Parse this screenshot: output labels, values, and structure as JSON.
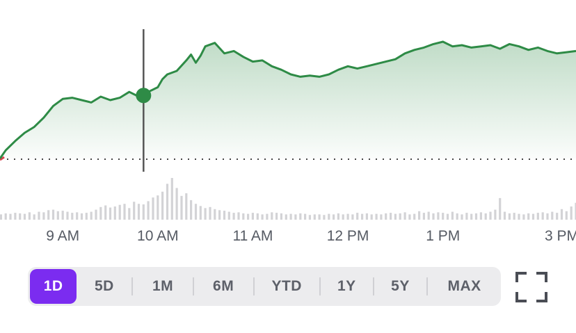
{
  "chart_data": {
    "type": "area",
    "accent_color": "#2e8b46",
    "x_tick_labels": [
      "9 AM",
      "10 AM",
      "11 AM",
      "12 PM",
      "1 PM",
      "3 PM"
    ],
    "x_tick_times": [
      9.0,
      10.0,
      11.0,
      12.0,
      13.0,
      14.25
    ],
    "x_range": [
      8.34,
      14.4
    ],
    "baseline_value": 0,
    "y_range": [
      0,
      100
    ],
    "cursor_time": 9.85,
    "cursor_value": 54,
    "price_series": [
      [
        8.34,
        0
      ],
      [
        8.4,
        7
      ],
      [
        8.5,
        15
      ],
      [
        8.6,
        22
      ],
      [
        8.7,
        27
      ],
      [
        8.8,
        35
      ],
      [
        8.9,
        45
      ],
      [
        9.0,
        51
      ],
      [
        9.1,
        52
      ],
      [
        9.2,
        50
      ],
      [
        9.3,
        48
      ],
      [
        9.4,
        53
      ],
      [
        9.5,
        50
      ],
      [
        9.6,
        52
      ],
      [
        9.7,
        57
      ],
      [
        9.8,
        53
      ],
      [
        9.85,
        54
      ],
      [
        9.9,
        57
      ],
      [
        10.0,
        61
      ],
      [
        10.05,
        68
      ],
      [
        10.1,
        72
      ],
      [
        10.2,
        75
      ],
      [
        10.3,
        84
      ],
      [
        10.35,
        89
      ],
      [
        10.4,
        82
      ],
      [
        10.45,
        88
      ],
      [
        10.5,
        96
      ],
      [
        10.6,
        99
      ],
      [
        10.7,
        90
      ],
      [
        10.8,
        92
      ],
      [
        10.9,
        87
      ],
      [
        11.0,
        83
      ],
      [
        11.1,
        84
      ],
      [
        11.2,
        79
      ],
      [
        11.3,
        76
      ],
      [
        11.4,
        72
      ],
      [
        11.5,
        70
      ],
      [
        11.6,
        71
      ],
      [
        11.7,
        70
      ],
      [
        11.8,
        72
      ],
      [
        11.9,
        76
      ],
      [
        12.0,
        79
      ],
      [
        12.1,
        77
      ],
      [
        12.2,
        79
      ],
      [
        12.3,
        81
      ],
      [
        12.4,
        83
      ],
      [
        12.5,
        85
      ],
      [
        12.6,
        90
      ],
      [
        12.7,
        93
      ],
      [
        12.8,
        95
      ],
      [
        12.9,
        98
      ],
      [
        13.0,
        100
      ],
      [
        13.1,
        96
      ],
      [
        13.2,
        97
      ],
      [
        13.3,
        95
      ],
      [
        13.4,
        96
      ],
      [
        13.5,
        97
      ],
      [
        13.6,
        94
      ],
      [
        13.7,
        98
      ],
      [
        13.8,
        96
      ],
      [
        13.9,
        93
      ],
      [
        14.0,
        95
      ],
      [
        14.1,
        92
      ],
      [
        14.2,
        90
      ],
      [
        14.3,
        91
      ],
      [
        14.4,
        92
      ]
    ],
    "volume_series": [
      [
        8.35,
        1.0
      ],
      [
        8.4,
        1.2
      ],
      [
        8.45,
        1.1
      ],
      [
        8.5,
        1.3
      ],
      [
        8.55,
        1.2
      ],
      [
        8.6,
        1.1
      ],
      [
        8.65,
        1.4
      ],
      [
        8.7,
        1.0
      ],
      [
        8.75,
        1.5
      ],
      [
        8.8,
        1.4
      ],
      [
        8.85,
        1.8
      ],
      [
        8.9,
        1.9
      ],
      [
        8.95,
        1.6
      ],
      [
        9.0,
        1.7
      ],
      [
        9.05,
        1.5
      ],
      [
        9.1,
        1.3
      ],
      [
        9.15,
        1.4
      ],
      [
        9.2,
        1.2
      ],
      [
        9.25,
        1.3
      ],
      [
        9.3,
        1.5
      ],
      [
        9.35,
        1.9
      ],
      [
        9.4,
        2.4
      ],
      [
        9.45,
        2.7
      ],
      [
        9.5,
        2.3
      ],
      [
        9.55,
        2.5
      ],
      [
        9.6,
        2.8
      ],
      [
        9.65,
        3.0
      ],
      [
        9.7,
        2.2
      ],
      [
        9.75,
        3.4
      ],
      [
        9.8,
        3.0
      ],
      [
        9.85,
        2.9
      ],
      [
        9.9,
        3.5
      ],
      [
        9.95,
        4.2
      ],
      [
        10.0,
        4.6
      ],
      [
        10.05,
        5.3
      ],
      [
        10.1,
        6.8
      ],
      [
        10.15,
        7.9
      ],
      [
        10.2,
        6.0
      ],
      [
        10.25,
        4.5
      ],
      [
        10.3,
        5.0
      ],
      [
        10.35,
        3.7
      ],
      [
        10.4,
        3.0
      ],
      [
        10.45,
        2.6
      ],
      [
        10.5,
        2.2
      ],
      [
        10.55,
        2.4
      ],
      [
        10.6,
        2.0
      ],
      [
        10.65,
        1.8
      ],
      [
        10.7,
        1.7
      ],
      [
        10.75,
        1.5
      ],
      [
        10.8,
        1.3
      ],
      [
        10.85,
        1.4
      ],
      [
        10.9,
        1.2
      ],
      [
        10.95,
        1.1
      ],
      [
        11.0,
        1.3
      ],
      [
        11.05,
        1.2
      ],
      [
        11.1,
        1.0
      ],
      [
        11.15,
        1.1
      ],
      [
        11.2,
        1.4
      ],
      [
        11.25,
        1.3
      ],
      [
        11.3,
        1.2
      ],
      [
        11.35,
        1.0
      ],
      [
        11.4,
        1.1
      ],
      [
        11.45,
        1.0
      ],
      [
        11.5,
        1.2
      ],
      [
        11.55,
        1.1
      ],
      [
        11.6,
        0.9
      ],
      [
        11.65,
        1.0
      ],
      [
        11.7,
        1.0
      ],
      [
        11.75,
        0.9
      ],
      [
        11.8,
        1.1
      ],
      [
        11.85,
        1.0
      ],
      [
        11.9,
        1.2
      ],
      [
        11.95,
        1.0
      ],
      [
        12.0,
        1.1
      ],
      [
        12.05,
        1.0
      ],
      [
        12.1,
        1.3
      ],
      [
        12.15,
        1.1
      ],
      [
        12.2,
        1.2
      ],
      [
        12.25,
        1.0
      ],
      [
        12.3,
        1.1
      ],
      [
        12.35,
        1.0
      ],
      [
        12.4,
        1.2
      ],
      [
        12.45,
        1.3
      ],
      [
        12.5,
        1.1
      ],
      [
        12.55,
        1.2
      ],
      [
        12.6,
        1.4
      ],
      [
        12.65,
        1.0
      ],
      [
        12.7,
        1.1
      ],
      [
        12.75,
        1.6
      ],
      [
        12.8,
        1.3
      ],
      [
        12.85,
        1.5
      ],
      [
        12.9,
        1.2
      ],
      [
        12.95,
        1.4
      ],
      [
        13.0,
        1.3
      ],
      [
        13.05,
        1.1
      ],
      [
        13.1,
        1.5
      ],
      [
        13.15,
        1.2
      ],
      [
        13.2,
        1.0
      ],
      [
        13.25,
        1.3
      ],
      [
        13.3,
        1.1
      ],
      [
        13.35,
        1.2
      ],
      [
        13.4,
        1.4
      ],
      [
        13.45,
        1.2
      ],
      [
        13.5,
        1.5
      ],
      [
        13.55,
        1.9
      ],
      [
        13.6,
        4.1
      ],
      [
        13.65,
        1.5
      ],
      [
        13.7,
        1.2
      ],
      [
        13.75,
        1.3
      ],
      [
        13.8,
        1.1
      ],
      [
        13.85,
        1.0
      ],
      [
        13.9,
        1.2
      ],
      [
        13.95,
        1.1
      ],
      [
        14.0,
        1.3
      ],
      [
        14.05,
        1.4
      ],
      [
        14.1,
        1.2
      ],
      [
        14.15,
        1.5
      ],
      [
        14.2,
        1.3
      ],
      [
        14.25,
        2.0
      ],
      [
        14.3,
        1.6
      ],
      [
        14.35,
        2.5
      ],
      [
        14.4,
        3.2
      ]
    ]
  },
  "range_selector": {
    "options": [
      {
        "label": "1D",
        "active": true
      },
      {
        "label": "5D",
        "active": false
      },
      {
        "label": "1M",
        "active": false
      },
      {
        "label": "6M",
        "active": false
      },
      {
        "label": "YTD",
        "active": false
      },
      {
        "label": "1Y",
        "active": false
      },
      {
        "label": "5Y",
        "active": false
      },
      {
        "label": "MAX",
        "active": false
      }
    ],
    "active_color": "#7b2cf0"
  },
  "fullscreen_button": {
    "icon": "fullscreen-icon"
  }
}
